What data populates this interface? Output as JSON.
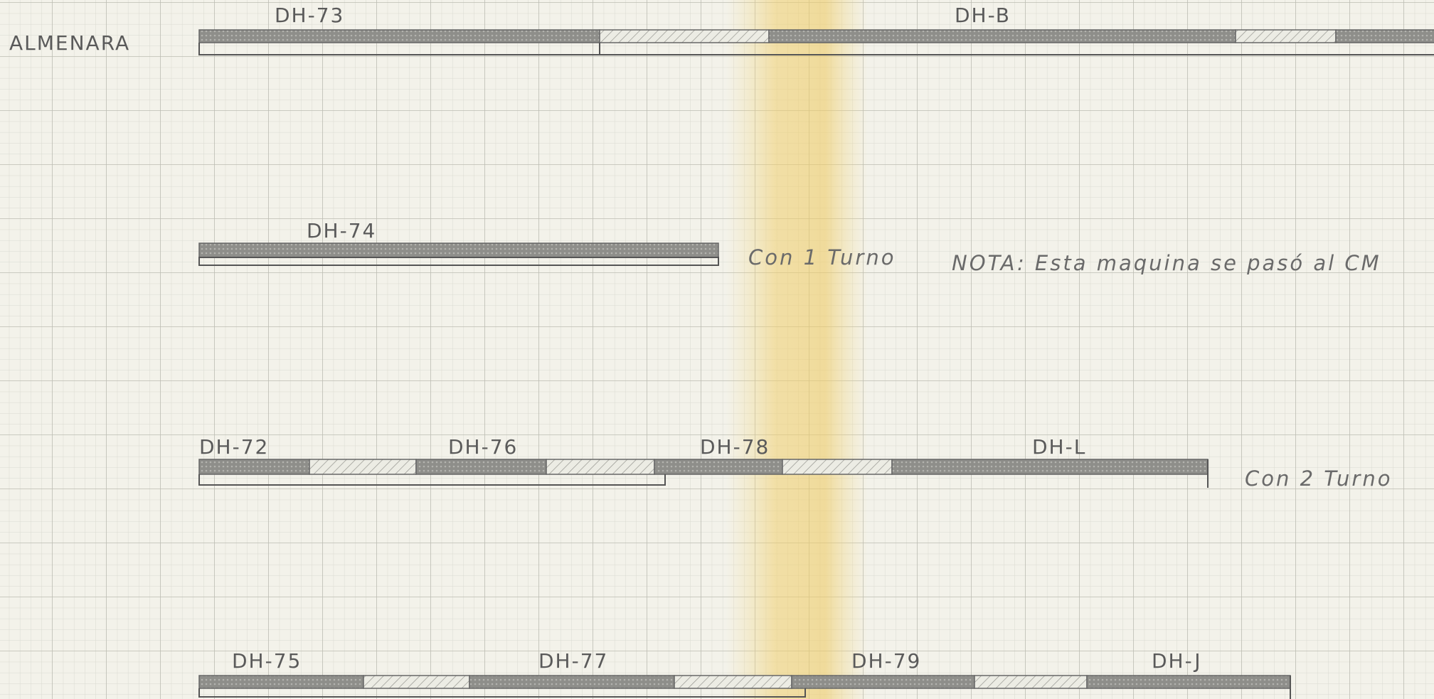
{
  "title": "ALMENARA",
  "rows": [
    {
      "tasks": [
        "DH-73",
        "DH-B"
      ]
    },
    {
      "tasks": [
        "DH-74"
      ],
      "notes": [
        "Con 1 Turno",
        "NOTA: Esta maquina se pasó al CM"
      ]
    },
    {
      "tasks": [
        "DH-72",
        "DH-76",
        "DH-78",
        "DH-L"
      ],
      "notes": [
        "Con 2 Turno"
      ]
    },
    {
      "tasks": [
        "DH-75",
        "DH-77",
        "DH-79",
        "DH-J"
      ]
    }
  ]
}
